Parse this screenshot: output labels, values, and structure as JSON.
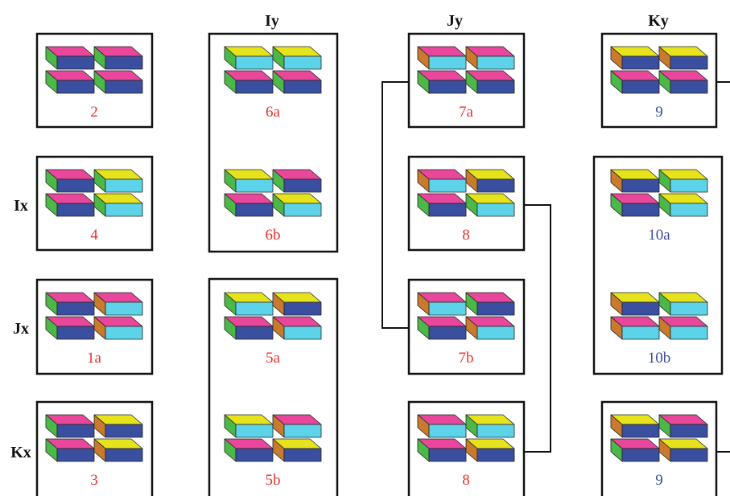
{
  "column_headers": [
    "Iy",
    "Jy",
    "Ky"
  ],
  "row_headers": [
    "Ix",
    "Jx",
    "Kx"
  ],
  "cells": [
    [
      "2",
      "4",
      "1a",
      "3"
    ],
    [
      "6a",
      "6b",
      "5a",
      "5b"
    ],
    [
      "7a",
      "8",
      "7b",
      "8"
    ],
    [
      "9",
      "10a",
      "10b",
      "9"
    ]
  ]
}
